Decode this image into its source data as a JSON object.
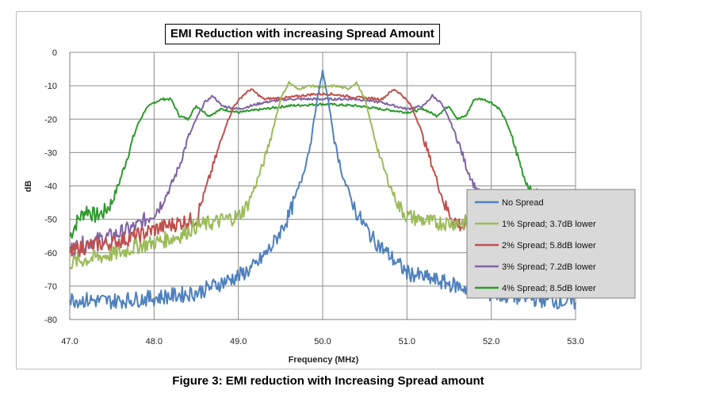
{
  "chart_data": {
    "type": "line",
    "title": "EMI Reduction with increasing Spread Amount",
    "xlabel": "Frequency (MHz)",
    "ylabel": "dB",
    "xlim": [
      47.0,
      53.0
    ],
    "ylim": [
      -80,
      0
    ],
    "x_ticks": [
      "47.0",
      "48.0",
      "49.0",
      "50.0",
      "51.0",
      "52.0",
      "53.0"
    ],
    "y_ticks": [
      "0",
      "-10",
      "-20",
      "-30",
      "-40",
      "-50",
      "-60",
      "-70",
      "-80"
    ],
    "grid": true,
    "legend_position": "right",
    "series": [
      {
        "name": "No Spread",
        "color": "#4f81bd",
        "points": [
          [
            47.0,
            -74
          ],
          [
            47.5,
            -74.5
          ],
          [
            48.0,
            -73.5
          ],
          [
            48.5,
            -72
          ],
          [
            48.8,
            -69
          ],
          [
            49.0,
            -67
          ],
          [
            49.2,
            -64
          ],
          [
            49.4,
            -58
          ],
          [
            49.6,
            -49
          ],
          [
            49.75,
            -38
          ],
          [
            49.85,
            -28
          ],
          [
            49.93,
            -15
          ],
          [
            50.0,
            -5.5
          ],
          [
            50.07,
            -15
          ],
          [
            50.15,
            -28
          ],
          [
            50.25,
            -38
          ],
          [
            50.4,
            -48
          ],
          [
            50.6,
            -56
          ],
          [
            50.8,
            -61
          ],
          [
            51.0,
            -66
          ],
          [
            51.3,
            -68
          ],
          [
            51.6,
            -70
          ],
          [
            51.9,
            -72
          ],
          [
            52.2,
            -73
          ],
          [
            52.6,
            -74
          ],
          [
            53.0,
            -75
          ]
        ]
      },
      {
        "name": "1% Spread; 3.7dB lower",
        "color": "#9bbb59",
        "points": [
          [
            47.0,
            -63
          ],
          [
            47.2,
            -62
          ],
          [
            47.4,
            -61
          ],
          [
            47.6,
            -60
          ],
          [
            47.8,
            -58
          ],
          [
            48.0,
            -57
          ],
          [
            48.3,
            -55
          ],
          [
            48.5,
            -52
          ],
          [
            48.7,
            -51
          ],
          [
            49.0,
            -49
          ],
          [
            49.1,
            -46
          ],
          [
            49.2,
            -40
          ],
          [
            49.3,
            -33
          ],
          [
            49.4,
            -24
          ],
          [
            49.5,
            -14
          ],
          [
            49.6,
            -9
          ],
          [
            49.7,
            -11
          ],
          [
            49.85,
            -10
          ],
          [
            50.0,
            -10.5
          ],
          [
            50.15,
            -10
          ],
          [
            50.3,
            -11
          ],
          [
            50.4,
            -9
          ],
          [
            50.5,
            -14
          ],
          [
            50.6,
            -24
          ],
          [
            50.7,
            -33
          ],
          [
            50.8,
            -40
          ],
          [
            50.9,
            -46
          ],
          [
            51.0,
            -49
          ],
          [
            51.3,
            -51
          ],
          [
            51.6,
            -51
          ],
          [
            51.8,
            -51
          ],
          [
            51.9,
            -51
          ]
        ]
      },
      {
        "name": "2% Spread; 5.8dB lower",
        "color": "#c0504d",
        "points": [
          [
            47.0,
            -60
          ],
          [
            47.2,
            -58
          ],
          [
            47.5,
            -57
          ],
          [
            47.8,
            -55
          ],
          [
            48.0,
            -53
          ],
          [
            48.3,
            -51
          ],
          [
            48.5,
            -50
          ],
          [
            48.55,
            -46
          ],
          [
            48.65,
            -38
          ],
          [
            48.75,
            -30
          ],
          [
            48.85,
            -22
          ],
          [
            48.95,
            -16
          ],
          [
            49.05,
            -13
          ],
          [
            49.15,
            -11
          ],
          [
            49.3,
            -14
          ],
          [
            49.6,
            -13.5
          ],
          [
            49.9,
            -12.5
          ],
          [
            50.0,
            -12.5
          ],
          [
            50.1,
            -12.5
          ],
          [
            50.4,
            -13.5
          ],
          [
            50.7,
            -14
          ],
          [
            50.85,
            -11
          ],
          [
            50.95,
            -13
          ],
          [
            51.05,
            -16
          ],
          [
            51.15,
            -22
          ],
          [
            51.25,
            -30
          ],
          [
            51.35,
            -38
          ],
          [
            51.45,
            -46
          ],
          [
            51.55,
            -50
          ],
          [
            51.7,
            -53
          ],
          [
            51.9,
            -55
          ]
        ]
      },
      {
        "name": "3% Spread; 7.2dB lower",
        "color": "#8064a2",
        "points": [
          [
            47.0,
            -59
          ],
          [
            47.2,
            -57
          ],
          [
            47.5,
            -55
          ],
          [
            47.8,
            -52
          ],
          [
            48.0,
            -48
          ],
          [
            48.1,
            -45
          ],
          [
            48.2,
            -40
          ],
          [
            48.3,
            -34
          ],
          [
            48.4,
            -26
          ],
          [
            48.5,
            -20
          ],
          [
            48.6,
            -15
          ],
          [
            48.7,
            -13
          ],
          [
            48.8,
            -16
          ],
          [
            49.0,
            -17
          ],
          [
            49.3,
            -15
          ],
          [
            49.6,
            -14
          ],
          [
            50.0,
            -14
          ],
          [
            50.4,
            -14
          ],
          [
            50.7,
            -15
          ],
          [
            51.0,
            -17
          ],
          [
            51.2,
            -16
          ],
          [
            51.3,
            -13
          ],
          [
            51.4,
            -15
          ],
          [
            51.5,
            -20
          ],
          [
            51.6,
            -26
          ],
          [
            51.7,
            -34
          ],
          [
            51.8,
            -40
          ],
          [
            51.9,
            -44
          ]
        ]
      },
      {
        "name": "4% Spread; 8.5dB lower",
        "color": "#2e9a2e",
        "points": [
          [
            47.0,
            -55
          ],
          [
            47.1,
            -50
          ],
          [
            47.2,
            -47
          ],
          [
            47.3,
            -49
          ],
          [
            47.4,
            -48
          ],
          [
            47.5,
            -45
          ],
          [
            47.6,
            -38
          ],
          [
            47.7,
            -30
          ],
          [
            47.8,
            -22
          ],
          [
            47.9,
            -17
          ],
          [
            48.0,
            -15
          ],
          [
            48.1,
            -14
          ],
          [
            48.2,
            -14
          ],
          [
            48.3,
            -19
          ],
          [
            48.4,
            -20
          ],
          [
            48.5,
            -16
          ],
          [
            48.65,
            -19
          ],
          [
            48.8,
            -17
          ],
          [
            49.0,
            -18
          ],
          [
            49.3,
            -17
          ],
          [
            49.6,
            -16
          ],
          [
            50.0,
            -15.5
          ],
          [
            50.4,
            -16
          ],
          [
            50.7,
            -17
          ],
          [
            51.0,
            -18
          ],
          [
            51.2,
            -17
          ],
          [
            51.35,
            -19
          ],
          [
            51.5,
            -16
          ],
          [
            51.6,
            -20
          ],
          [
            51.7,
            -19
          ],
          [
            51.8,
            -14
          ],
          [
            51.9,
            -14
          ],
          [
            52.0,
            -15
          ],
          [
            52.1,
            -17
          ],
          [
            52.2,
            -22
          ],
          [
            52.3,
            -30
          ],
          [
            52.4,
            -38
          ],
          [
            52.5,
            -43
          ],
          [
            52.55,
            -41
          ]
        ]
      }
    ],
    "legend": [
      {
        "label": "No Spread",
        "color": "#4f81bd"
      },
      {
        "label": "1% Spread; 3.7dB lower",
        "color": "#9bbb59"
      },
      {
        "label": "2% Spread; 5.8dB lower",
        "color": "#c0504d"
      },
      {
        "label": "3% Spread; 7.2dB lower",
        "color": "#8064a2"
      },
      {
        "label": "4% Spread; 8.5dB lower",
        "color": "#2e9a2e"
      }
    ]
  },
  "caption": "Figure 3: EMI reduction with Increasing Spread amount"
}
